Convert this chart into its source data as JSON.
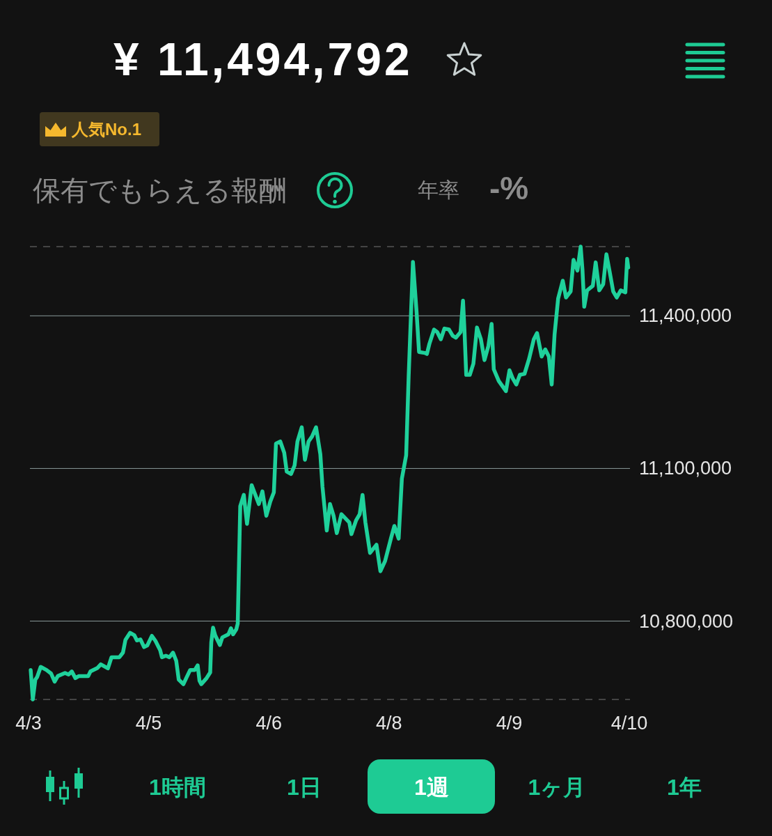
{
  "chart_data": {
    "type": "line",
    "title": "¥ 11,494,792",
    "annotations": [
      "人気No.1",
      "保有でもらえる報酬",
      "年率",
      "-%",
      "1時間",
      "1日",
      "1週",
      "1ヶ月",
      "1年"
    ],
    "x": [
      "--04-03T20:36",
      "--04-03T21:12",
      "--04-03T21:54",
      "--04-03T22:24",
      "--04-03T23:24",
      "--04-04T01:00",
      "--04-04T02:18",
      "--04-04T03:18",
      "--04-04T04:12",
      "--04-04T06:12",
      "--04-04T07:12",
      "--04-04T08:06",
      "--04-04T09:06",
      "--04-04T10:06",
      "--04-04T12:42",
      "--04-04T13:18",
      "--04-04T15:18",
      "--04-04T16:12",
      "--04-04T18:12",
      "--04-04T19:12",
      "--04-04T21:24",
      "--04-04T22:24",
      "--04-04T23:06",
      "--04-05T00:24",
      "--04-05T01:36",
      "--04-05T02:18",
      "--04-05T03:18",
      "--04-05T04:18",
      "--04-05T05:12",
      "--04-05T06:30",
      "--04-05T07:30",
      "--04-05T08:48",
      "--04-05T09:18",
      "--04-05T10:24",
      "--04-05T11:24",
      "--04-05T12:24",
      "--04-05T13:18",
      "--04-05T14:00",
      "--04-05T15:18",
      "--04-05T16:06",
      "--04-05T17:12",
      "--04-05T18:30",
      "--04-05T19:18",
      "--04-05T19:48",
      "--04-05T20:18",
      "--04-05T21:48",
      "--04-05T22:48",
      "--04-05T23:06",
      "--04-05T23:36",
      "--04-06T00:12",
      "--04-06T01:30",
      "--04-06T02:12",
      "--04-06T03:54",
      "--04-06T04:36",
      "--04-06T05:12",
      "--04-06T06:06",
      "--04-06T06:30",
      "--04-06T07:12",
      "--04-06T08:12",
      "--04-06T09:06",
      "--04-06T10:24",
      "--04-06T12:24",
      "--04-06T13:24",
      "--04-06T14:30",
      "--04-06T15:36",
      "--04-06T16:36",
      "--04-06T17:12",
      "--04-06T18:24",
      "--04-06T19:30",
      "--04-06T20:12",
      "--04-06T21:24",
      "--04-06T22:24",
      "--04-06T23:12",
      "--04-07T00:24",
      "--04-07T01:18",
      "--04-07T02:18",
      "--04-07T03:18",
      "--04-07T04:24",
      "--04-07T05:36",
      "--04-07T06:12",
      "--04-07T07:24",
      "--04-07T08:18",
      "--04-07T09:18",
      "--04-07T10:12",
      "--04-07T11:30",
      "--04-07T13:42",
      "--04-07T14:18",
      "--04-07T15:36",
      "--04-07T16:36",
      "--04-07T17:24",
      "--04-07T18:12",
      "--04-07T19:30",
      "--04-07T21:18",
      "--04-07T22:24",
      "--04-07T23:42",
      "--04-08T01:24",
      "--04-08T02:18",
      "--04-08T03:30",
      "--04-08T04:24",
      "--04-08T05:36",
      "--04-08T06:18",
      "--04-08T07:30",
      "--04-08T08:30",
      "--04-08T09:12",
      "--04-08T10:48",
      "--04-08T11:24",
      "--04-08T12:06",
      "--04-08T13:24",
      "--04-08T14:18",
      "--04-08T15:18",
      "--04-08T16:18",
      "--04-08T17:36",
      "--04-08T18:36",
      "--04-08T19:30",
      "--04-08T20:48",
      "--04-08T21:30",
      "--04-08T21:54",
      "--04-08T22:24",
      "--04-08T23:24",
      "--04-09T00:24",
      "--04-09T01:24",
      "--04-09T02:30",
      "--04-09T03:30",
      "--04-09T04:36",
      "--04-09T05:30",
      "--04-09T06:06",
      "--04-09T07:30",
      "--04-09T09:30",
      "--04-09T10:30",
      "--04-09T11:24",
      "--04-09T12:24",
      "--04-09T13:24",
      "--04-09T14:42",
      "--04-09T16:00",
      "--04-09T17:18",
      "--04-09T18:12",
      "--04-09T19:30",
      "--04-09T20:30",
      "--04-09T21:30",
      "--04-09T22:18",
      "--04-09T23:06",
      "--04-10T00:06",
      "--04-10T01:24",
      "--04-10T02:18",
      "--04-10T03:36",
      "--04-10T04:24",
      "--04-10T05:30",
      "--04-10T06:24",
      "--04-10T06:54",
      "--04-10T07:24",
      "--04-10T08:12",
      "--04-10T09:48",
      "--04-10T10:36",
      "--04-10T11:36",
      "--04-10T12:42",
      "--04-10T13:36",
      "--04-10T14:30",
      "--04-10T15:30",
      "--04-10T16:30",
      "--04-10T17:36",
      "--04-10T18:54",
      "--04-10T19:24",
      "--04-10T19:42"
    ],
    "series": [
      {
        "color": "#1fd19b",
        "values": [
          10704000,
          10646000,
          10685000,
          10690000,
          10710000,
          10704000,
          10697000,
          10681000,
          10692000,
          10698000,
          10695000,
          10701000,
          10688000,
          10692000,
          10692000,
          10701000,
          10708000,
          10715000,
          10707000,
          10729000,
          10729000,
          10738000,
          10763000,
          10777000,
          10772000,
          10762000,
          10764000,
          10749000,
          10752000,
          10771000,
          10761000,
          10743000,
          10729000,
          10732000,
          10729000,
          10738000,
          10722000,
          10685000,
          10676000,
          10688000,
          10704000,
          10704000,
          10713000,
          10683000,
          10676000,
          10688000,
          10699000,
          10758000,
          10787000,
          10772000,
          10753000,
          10768000,
          10774000,
          10786000,
          10774000,
          10784000,
          10795000,
          11026000,
          11048000,
          10991000,
          11067000,
          11030000,
          11055000,
          11007000,
          11035000,
          11053000,
          11149000,
          11153000,
          11131000,
          11094000,
          11089000,
          11106000,
          11153000,
          11181000,
          11117000,
          11153000,
          11163000,
          11181000,
          11128000,
          11064000,
          10978000,
          11030000,
          11007000,
          10973000,
          11010000,
          10994000,
          10971000,
          10998000,
          11010000,
          11048000,
          10994000,
          10934000,
          10950000,
          10898000,
          10918000,
          10964000,
          10987000,
          10962000,
          11080000,
          11126000,
          11281000,
          11506000,
          11409000,
          11329000,
          11327000,
          11325000,
          11345000,
          11373000,
          11368000,
          11354000,
          11375000,
          11373000,
          11361000,
          11357000,
          11368000,
          11430000,
          11373000,
          11284000,
          11284000,
          11306000,
          11377000,
          11354000,
          11313000,
          11341000,
          11384000,
          11295000,
          11272000,
          11252000,
          11293000,
          11277000,
          11265000,
          11284000,
          11286000,
          11316000,
          11354000,
          11366000,
          11320000,
          11334000,
          11320000,
          11265000,
          11363000,
          11434000,
          11469000,
          11436000,
          11448000,
          11510000,
          11489000,
          11536000,
          11491000,
          11418000,
          11450000,
          11459000,
          11505000,
          11450000,
          11462000,
          11521000,
          11487000,
          11448000,
          11436000,
          11450000,
          11446000,
          11512000,
          11495000
        ]
      }
    ],
    "xlim": [
      "--04-03T20:00",
      "--04-10T20:00"
    ],
    "xticks": [
      {
        "value": "--04-03T20:00",
        "label": "4/3"
      },
      {
        "value": "--04-05T05:36",
        "label": "4/5"
      },
      {
        "value": "--04-06T15:12",
        "label": "4/6"
      },
      {
        "value": "--04-08T00:48",
        "label": "4/8"
      },
      {
        "value": "--04-09T10:24",
        "label": "4/9"
      },
      {
        "value": "--04-10T20:00",
        "label": "4/10"
      }
    ],
    "ylim": [
      10646000,
      11536000
    ],
    "yticks": [
      {
        "value": 10800000,
        "label": "10,800,000"
      },
      {
        "value": 11100000,
        "label": "11,100,000"
      },
      {
        "value": 11400000,
        "label": "11,400,000"
      }
    ],
    "grid": "y",
    "ref_lines": [
      {
        "axis": "y",
        "value": 11536000,
        "line_style": "dashed",
        "color": "#555555"
      },
      {
        "axis": "y",
        "value": 10646000,
        "line_style": "dashed",
        "color": "#555555"
      }
    ],
    "line_style": "solid"
  }
}
